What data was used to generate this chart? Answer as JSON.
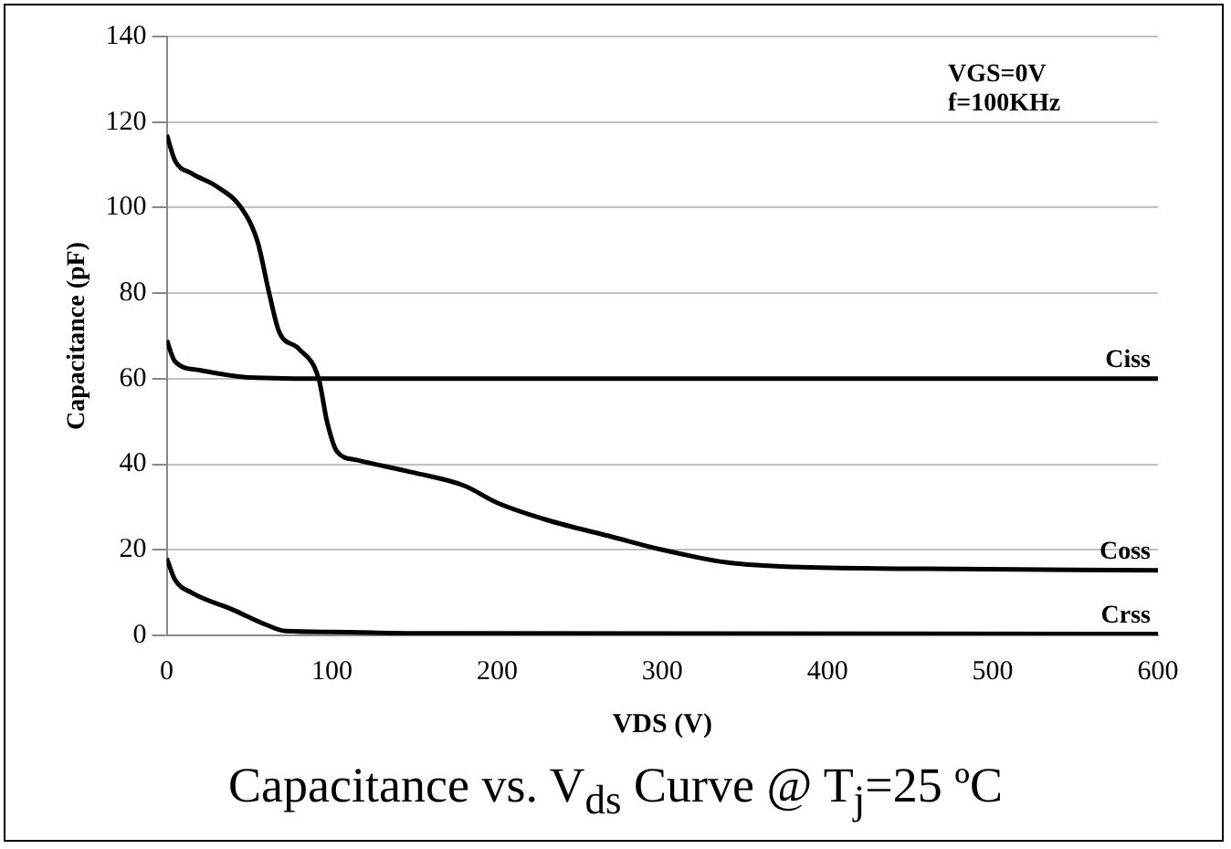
{
  "chart_data": {
    "type": "line",
    "title": "Capacitance vs. V$_{ds}$ Curve @ T$_{j}$=25 ºC",
    "xlabel": "VDS (V)",
    "ylabel": "Capacitance (pF)",
    "annotations": [
      "VGS=0V",
      "f=100KHz"
    ],
    "xlim": [
      0,
      600
    ],
    "xticks": [
      0,
      100,
      200,
      300,
      400,
      500,
      600
    ],
    "ylim": [
      0,
      140
    ],
    "yticks": [
      0,
      20,
      40,
      60,
      80,
      100,
      120,
      140
    ],
    "grid": "y",
    "legend": false,
    "marker": "none",
    "line_style": "solid",
    "series": [
      {
        "name": "Ciss",
        "color": "#000000",
        "x": [
          0,
          5,
          20,
          50,
          100,
          600
        ],
        "values": [
          69,
          64,
          62,
          60.3,
          60,
          60
        ]
      },
      {
        "name": "Coss",
        "color": "#000000",
        "x": [
          0,
          5,
          15,
          30,
          45,
          55,
          62,
          68,
          80,
          92,
          97,
          103,
          115,
          150,
          180,
          200,
          230,
          270,
          300,
          340,
          380,
          450,
          600
        ],
        "values": [
          117,
          111,
          108,
          105,
          100,
          92,
          80,
          71,
          67,
          60,
          50,
          43,
          41,
          38,
          35,
          31,
          27,
          23,
          20,
          17,
          16,
          15.6,
          15.2
        ]
      },
      {
        "name": "Crss",
        "color": "#000000",
        "x": [
          0,
          5,
          15,
          40,
          60,
          72,
          100,
          150,
          600
        ],
        "values": [
          18,
          13,
          10,
          6,
          2.5,
          1,
          0.8,
          0.5,
          0.3
        ]
      }
    ]
  }
}
